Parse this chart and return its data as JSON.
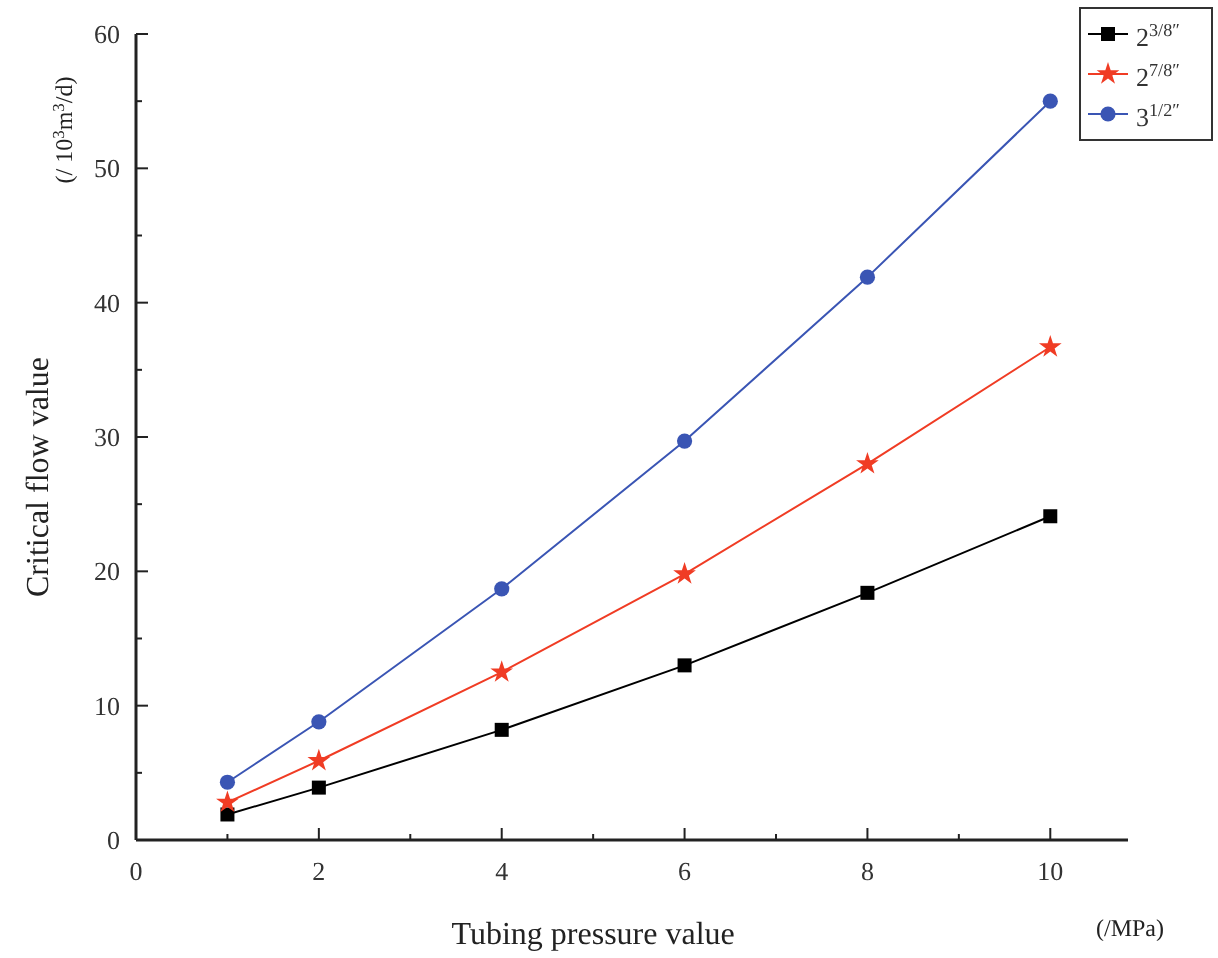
{
  "chart_data": {
    "type": "line",
    "xlabel": "Tubing pressure value",
    "ylabel": "Critical flow value",
    "annotations": [
      "(/ 10$^{3}$m$^{3}$/d)",
      "(/MPa)"
    ],
    "x": [
      1,
      2,
      4,
      6,
      8,
      10
    ],
    "series": [
      {
        "name": "2$^{3/8″}$",
        "color": "#000000",
        "marker": "square",
        "values": [
          1.9,
          3.9,
          8.2,
          13,
          18.4,
          24.1
        ]
      },
      {
        "name": "2$^{7/8″}$",
        "color": "#f03c24",
        "marker": "star",
        "values": [
          2.8,
          5.9,
          12.5,
          19.8,
          28,
          36.7
        ]
      },
      {
        "name": "3$^{1/2″}$",
        "color": "#3a55b4",
        "marker": "circle",
        "values": [
          4.3,
          8.8,
          18.7,
          29.7,
          41.9,
          55
        ]
      }
    ],
    "xlim": [
      0,
      10.85
    ],
    "xticks": [
      0,
      {
        "value": 1,
        "label": null
      },
      2,
      {
        "value": 3,
        "label": null
      },
      4,
      {
        "value": 5,
        "label": null
      },
      6,
      {
        "value": 7,
        "label": null
      },
      8,
      {
        "value": 9,
        "label": null
      },
      10
    ],
    "ylim": [
      0,
      60
    ],
    "yticks": [
      0,
      {
        "value": 5,
        "label": null
      },
      10,
      {
        "value": 15,
        "label": null
      },
      20,
      {
        "value": 25,
        "label": null
      },
      30,
      {
        "value": 35,
        "label": null
      },
      40,
      {
        "value": 45,
        "label": null
      },
      50,
      {
        "value": 55,
        "label": null
      },
      60
    ],
    "legend": "top right",
    "grid": false
  }
}
